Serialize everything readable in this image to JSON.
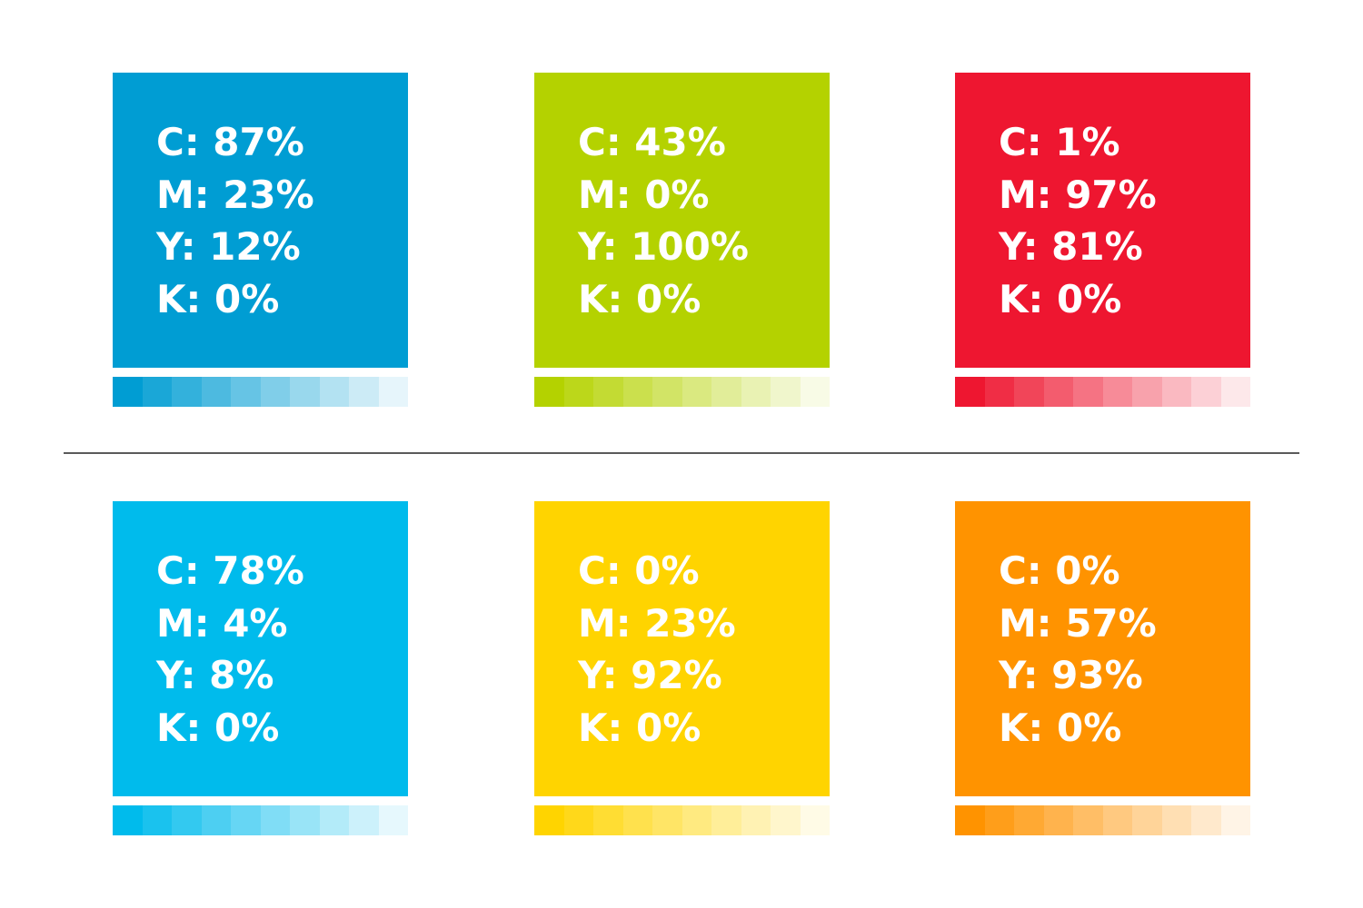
{
  "swatches": [
    {
      "color": "#009DD3",
      "values": [
        "C: 87%",
        "M: 23%",
        "Y: 12%",
        "K: 0%"
      ]
    },
    {
      "color": "#B4D200",
      "values": [
        "C: 43%",
        "M: 0%",
        "Y: 100%",
        "K: 0%"
      ]
    },
    {
      "color": "#EE1630",
      "values": [
        "C: 1%",
        "M: 97%",
        "Y: 81%",
        "K: 0%"
      ]
    },
    {
      "color": "#00BBEC",
      "values": [
        "C: 78%",
        "M: 4%",
        "Y: 8%",
        "K: 0%"
      ]
    },
    {
      "color": "#FFD400",
      "values": [
        "C: 0%",
        "M: 23%",
        "Y: 92%",
        "K: 0%"
      ]
    },
    {
      "color": "#FF9300",
      "values": [
        "C: 0%",
        "M: 57%",
        "Y: 93%",
        "K: 0%"
      ]
    }
  ],
  "ramp_levels": [
    1.0,
    0.9,
    0.8,
    0.7,
    0.6,
    0.5,
    0.4,
    0.3,
    0.2,
    0.1
  ]
}
